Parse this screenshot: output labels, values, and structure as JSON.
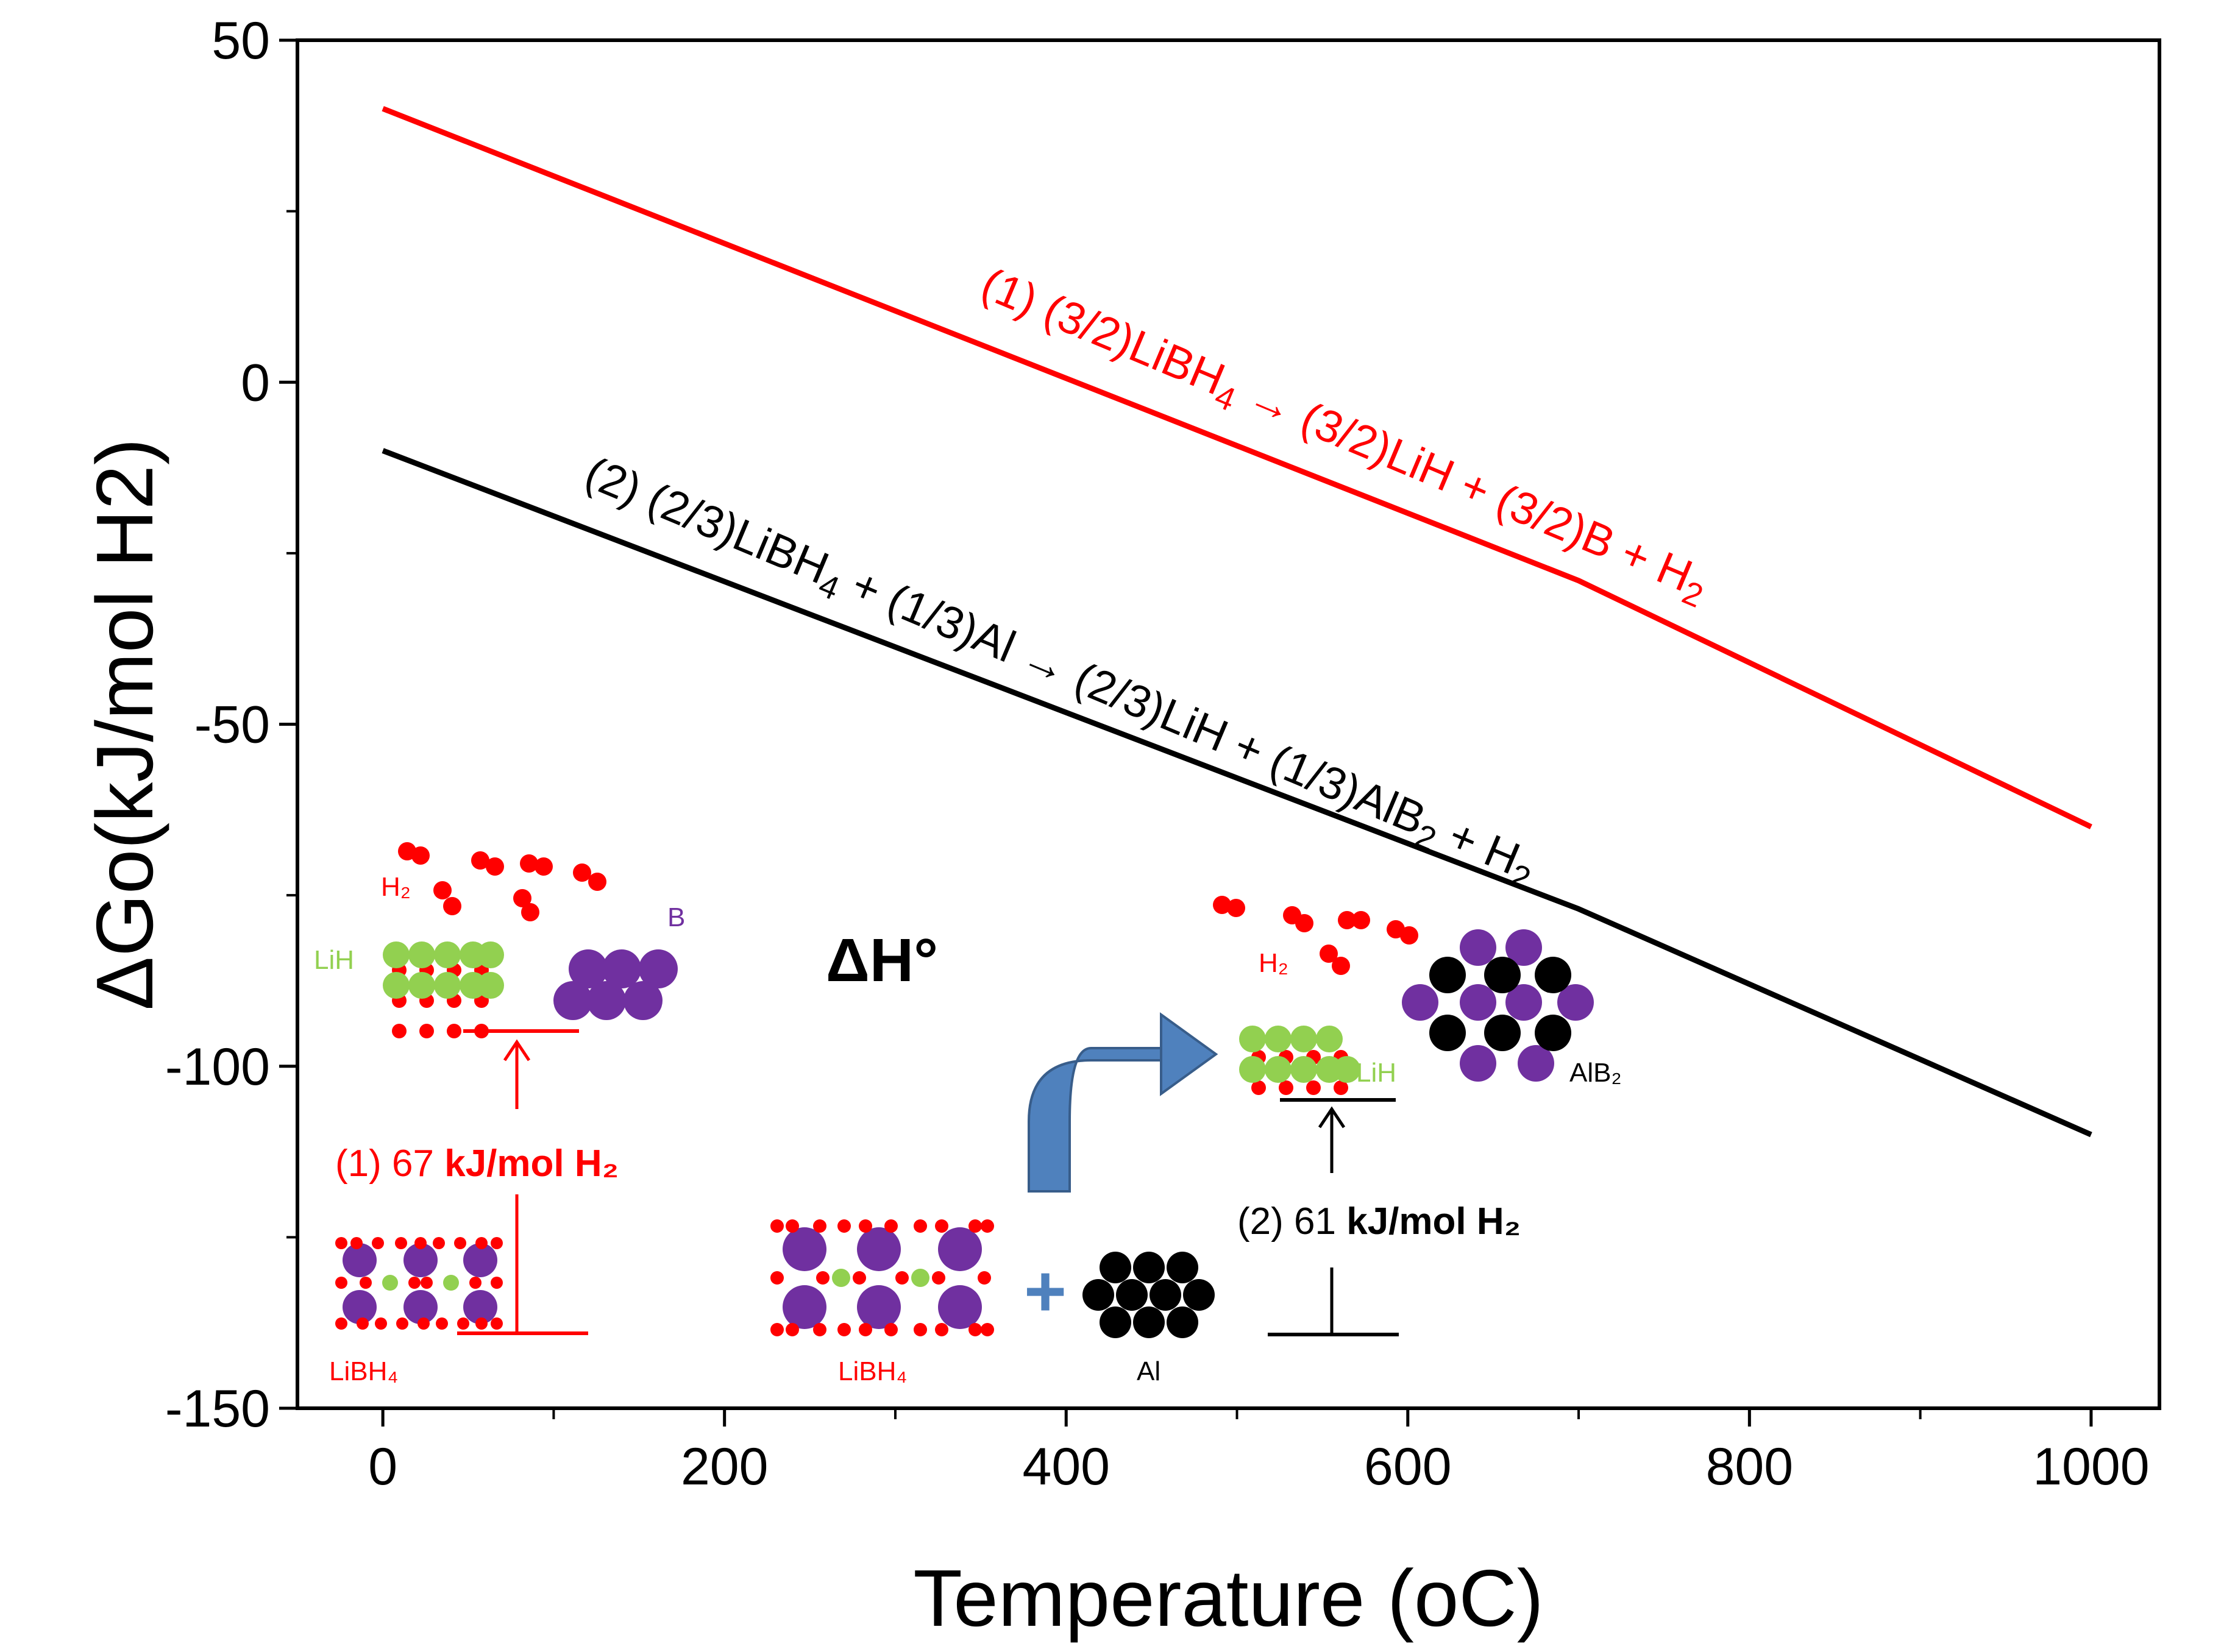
{
  "chart_data": {
    "type": "line",
    "xlabel": "Temperature (oC)",
    "ylabel": "ΔGo(kJ/mol H2)",
    "xlim": [
      -50,
      1040
    ],
    "ylim": [
      -150,
      50
    ],
    "xticks": [
      0,
      200,
      400,
      600,
      800,
      1000
    ],
    "yticks": [
      50,
      0,
      -50,
      -100,
      -150
    ],
    "xtick_labels": [
      "0",
      "200",
      "400",
      "600",
      "800",
      "1000"
    ],
    "ytick_labels": [
      "50",
      "0",
      "-50",
      "-100",
      "-150"
    ],
    "series": [
      {
        "name": "(1) (3/2)LiBH4 → (3/2)LiH + (3/2)B + H2",
        "color": "#ff0000",
        "points": [
          [
            0,
            40
          ],
          [
            700,
            -29
          ],
          [
            1000,
            -65
          ]
        ],
        "label_parts": [
          "(1) (3/2)LiBH",
          "4",
          " → (3/2)LiH + (3/2)B + H",
          "2"
        ]
      },
      {
        "name": "(2) (2/3)LiBH4 + (1/3)Al → (2/3)LiH + (1/3)AlB2 + H2",
        "color": "#000000",
        "points": [
          [
            0,
            -10
          ],
          [
            700,
            -77
          ],
          [
            1000,
            -110
          ]
        ],
        "label_parts": [
          "(2) (2/3)LiBH",
          "4",
          " + (1/3)Al → (2/3)LiH + (1/3)AlB",
          "2",
          " + H",
          "2"
        ]
      }
    ],
    "annotations": {
      "dh_label": "ΔH°",
      "reaction1": {
        "value_prefix": "(1) 67 ",
        "value_unit": "kJ/mol H₂",
        "h2_label": "H₂",
        "lih_label": "LiH",
        "b_label": "B",
        "libh4_label": "LiBH₄"
      },
      "reaction2": {
        "value_prefix": "(2) 61 ",
        "value_unit": "kJ/mol H₂",
        "h2_label": "H₂",
        "lih_label": "LiH",
        "alb2_label": "AlB₂",
        "libh4_label": "LiBH₄",
        "al_label": "Al",
        "plus_sign": "+"
      }
    },
    "colors": {
      "red": "#ff0000",
      "purple": "#7030a0",
      "green": "#92d050",
      "arrow_blue": "#4f81bd",
      "black": "#000000"
    }
  }
}
